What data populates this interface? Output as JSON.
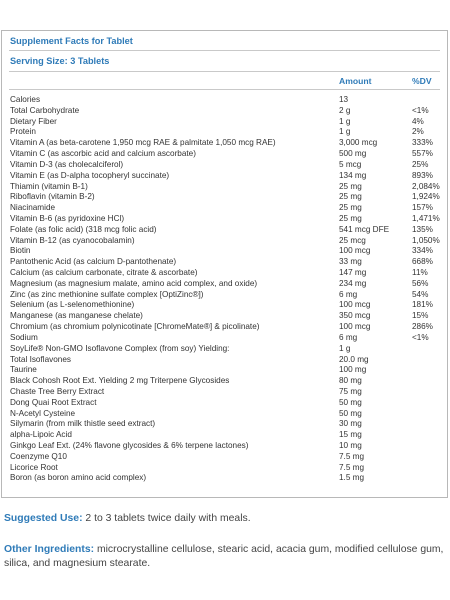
{
  "title": "Supplement Facts for Tablet",
  "serving_size": "Serving Size: 3 Tablets",
  "columns": {
    "amount": "Amount",
    "dv": "%DV"
  },
  "rows": [
    {
      "name": "Calories",
      "amount": "13",
      "dv": ""
    },
    {
      "name": "Total Carbohydrate",
      "amount": "2 g",
      "dv": "<1%"
    },
    {
      "name": "Dietary Fiber",
      "amount": "1 g",
      "dv": "4%"
    },
    {
      "name": "Protein",
      "amount": "1 g",
      "dv": "2%"
    },
    {
      "name": "Vitamin A (as beta-carotene 1,950 mcg RAE & palmitate 1,050 mcg RAE)",
      "amount": "3,000 mcg",
      "dv": "333%"
    },
    {
      "name": "Vitamin C (as ascorbic acid and calcium ascorbate)",
      "amount": "500 mg",
      "dv": "557%"
    },
    {
      "name": "Vitamin D-3 (as cholecalciferol)",
      "amount": "5 mcg",
      "dv": "25%"
    },
    {
      "name": "Vitamin E (as D-alpha tocopheryl succinate)",
      "amount": "134 mg",
      "dv": "893%"
    },
    {
      "name": "Thiamin (vitamin B-1)",
      "amount": "25 mg",
      "dv": "2,084%"
    },
    {
      "name": "Riboflavin (vitamin B-2)",
      "amount": "25 mg",
      "dv": "1,924%"
    },
    {
      "name": "Niacinamide",
      "amount": "25 mg",
      "dv": "157%"
    },
    {
      "name": "Vitamin B-6 (as pyridoxine HCl)",
      "amount": "25 mg",
      "dv": "1,471%"
    },
    {
      "name": "Folate (as folic acid) (318 mcg folic acid)",
      "amount": "541 mcg DFE",
      "dv": "135%"
    },
    {
      "name": "Vitamin B-12 (as cyanocobalamin)",
      "amount": "25 mcg",
      "dv": "1,050%"
    },
    {
      "name": "Biotin",
      "amount": "100 mcg",
      "dv": "334%"
    },
    {
      "name": "Pantothenic Acid (as calcium D-pantothenate)",
      "amount": "33 mg",
      "dv": "668%"
    },
    {
      "name": "Calcium (as calcium carbonate, citrate & ascorbate)",
      "amount": "147 mg",
      "dv": "11%"
    },
    {
      "name": "Magnesium (as magnesium malate, amino acid complex, and oxide)",
      "amount": "234 mg",
      "dv": "56%"
    },
    {
      "name": "Zinc (as zinc methionine sulfate complex [OptiZinc®])",
      "amount": "6 mg",
      "dv": "54%"
    },
    {
      "name": "Selenium (as L-selenomethionine)",
      "amount": "100 mcg",
      "dv": "181%"
    },
    {
      "name": "Manganese (as manganese chelate)",
      "amount": "350 mcg",
      "dv": "15%"
    },
    {
      "name": "Chromium (as chromium polynicotinate [ChromeMate®] & picolinate)",
      "amount": "100 mcg",
      "dv": "286%"
    },
    {
      "name": "Sodium",
      "amount": "6 mg",
      "dv": "<1%"
    },
    {
      "name": "SoyLife® Non-GMO Isoflavone Complex (from soy) Yielding:",
      "amount": "1 g",
      "dv": ""
    },
    {
      "name": "Total Isoflavones",
      "amount": "20.0 mg",
      "dv": ""
    },
    {
      "name": "Taurine",
      "amount": "100 mg",
      "dv": ""
    },
    {
      "name": "Black Cohosh Root Ext. Yielding 2 mg Triterpene Glycosides",
      "amount": "80 mg",
      "dv": ""
    },
    {
      "name": "Chaste Tree Berry Extract",
      "amount": "75 mg",
      "dv": ""
    },
    {
      "name": "Dong Quai Root Extract",
      "amount": "50 mg",
      "dv": ""
    },
    {
      "name": "N-Acetyl Cysteine",
      "amount": "50 mg",
      "dv": ""
    },
    {
      "name": "Silymarin (from milk thistle seed extract)",
      "amount": "30 mg",
      "dv": ""
    },
    {
      "name": "alpha-Lipoic Acid",
      "amount": "15 mg",
      "dv": ""
    },
    {
      "name": "Ginkgo Leaf Ext. (24% flavone glycosides & 6% terpene lactones)",
      "amount": "10 mg",
      "dv": ""
    },
    {
      "name": "Coenzyme Q10",
      "amount": "7.5 mg",
      "dv": ""
    },
    {
      "name": "Licorice Root",
      "amount": "7.5 mg",
      "dv": ""
    },
    {
      "name": "Boron (as boron amino acid complex)",
      "amount": "1.5 mg",
      "dv": ""
    }
  ],
  "suggested_use": {
    "label": "Suggested Use:",
    "text": " 2 to 3 tablets twice daily with meals."
  },
  "other_ingredients": {
    "label": "Other Ingredients:",
    "text": " microcrystalline cellulose, stearic acid, acacia gum, modified cellulose gum, silica, and magnesium stearate."
  }
}
